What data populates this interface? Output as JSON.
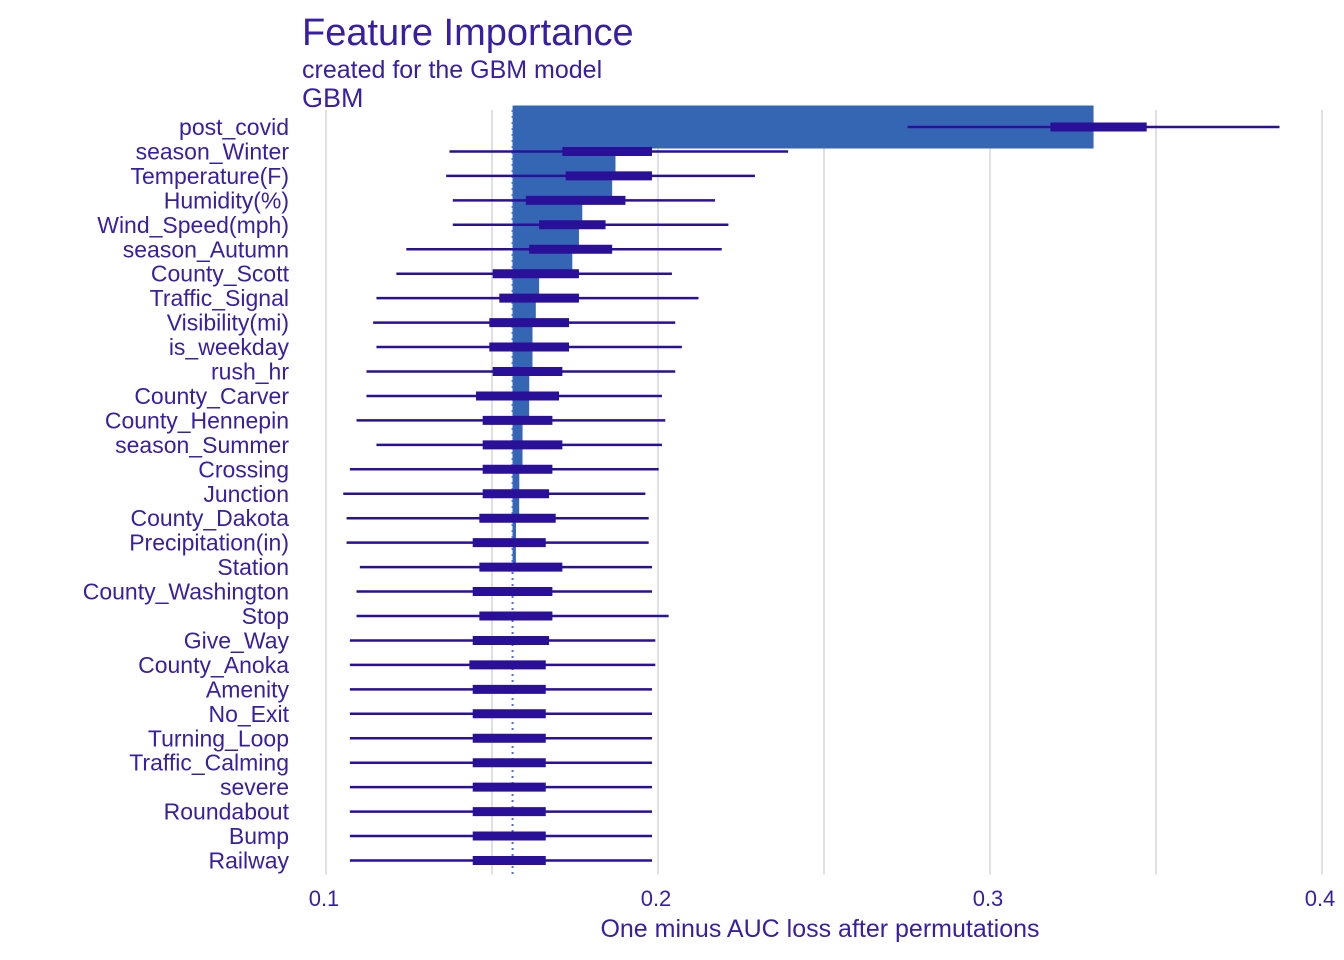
{
  "colors": {
    "bar": "#3566b4",
    "whisker": "#2a0f99",
    "text": "#371ea3",
    "grid": "#e0e0e0",
    "baseline": "#4a6fd6"
  },
  "chart_data": {
    "type": "bar",
    "title": "Feature Importance",
    "subtitle": "created for the GBM model",
    "facet_label": "GBM",
    "xlabel": "One minus AUC loss after permutations",
    "xlim": [
      0.1,
      0.4
    ],
    "xticks": [
      "0.1",
      "0.2",
      "0.3",
      "0.4"
    ],
    "baseline": 0.158,
    "grid": true,
    "categories": [
      "post_covid",
      "season_Winter",
      "Temperature(F)",
      "Humidity(%)",
      "Wind_Speed(mph)",
      "season_Autumn",
      "County_Scott",
      "Traffic_Signal",
      "Visibility(mi)",
      "is_weekday",
      "rush_hr",
      "County_Carver",
      "County_Hennepin",
      "season_Summer",
      "Crossing",
      "Junction",
      "County_Dakota",
      "Precipitation(in)",
      "Station",
      "County_Washington",
      "Stop",
      "Give_Way",
      "County_Anoka",
      "Amenity",
      "No_Exit",
      "Turning_Loop",
      "Traffic_Calming",
      "severe",
      "Roundabout",
      "Bump",
      "Railway"
    ],
    "values": [
      0.333,
      0.189,
      0.188,
      0.179,
      0.178,
      0.176,
      0.166,
      0.165,
      0.164,
      0.164,
      0.163,
      0.163,
      0.161,
      0.161,
      0.16,
      0.16,
      0.159,
      0.159,
      0.158,
      0.158,
      0.158,
      0.158,
      0.158,
      0.158,
      0.158,
      0.158,
      0.158,
      0.158,
      0.158,
      0.158,
      0.158
    ],
    "ranges": [
      {
        "min": 0.277,
        "q1": 0.32,
        "q3": 0.349,
        "max": 0.389
      },
      {
        "min": 0.139,
        "q1": 0.173,
        "q3": 0.2,
        "max": 0.241
      },
      {
        "min": 0.138,
        "q1": 0.174,
        "q3": 0.2,
        "max": 0.231
      },
      {
        "min": 0.14,
        "q1": 0.162,
        "q3": 0.192,
        "max": 0.219
      },
      {
        "min": 0.14,
        "q1": 0.166,
        "q3": 0.186,
        "max": 0.223
      },
      {
        "min": 0.126,
        "q1": 0.163,
        "q3": 0.188,
        "max": 0.221
      },
      {
        "min": 0.123,
        "q1": 0.152,
        "q3": 0.178,
        "max": 0.206
      },
      {
        "min": 0.117,
        "q1": 0.154,
        "q3": 0.178,
        "max": 0.214
      },
      {
        "min": 0.116,
        "q1": 0.151,
        "q3": 0.175,
        "max": 0.207
      },
      {
        "min": 0.117,
        "q1": 0.151,
        "q3": 0.175,
        "max": 0.209
      },
      {
        "min": 0.114,
        "q1": 0.152,
        "q3": 0.173,
        "max": 0.207
      },
      {
        "min": 0.114,
        "q1": 0.147,
        "q3": 0.172,
        "max": 0.203
      },
      {
        "min": 0.111,
        "q1": 0.149,
        "q3": 0.17,
        "max": 0.204
      },
      {
        "min": 0.117,
        "q1": 0.149,
        "q3": 0.173,
        "max": 0.203
      },
      {
        "min": 0.109,
        "q1": 0.149,
        "q3": 0.17,
        "max": 0.202
      },
      {
        "min": 0.107,
        "q1": 0.149,
        "q3": 0.169,
        "max": 0.198
      },
      {
        "min": 0.108,
        "q1": 0.148,
        "q3": 0.171,
        "max": 0.199
      },
      {
        "min": 0.108,
        "q1": 0.146,
        "q3": 0.168,
        "max": 0.199
      },
      {
        "min": 0.112,
        "q1": 0.148,
        "q3": 0.173,
        "max": 0.2
      },
      {
        "min": 0.111,
        "q1": 0.146,
        "q3": 0.17,
        "max": 0.2
      },
      {
        "min": 0.111,
        "q1": 0.148,
        "q3": 0.17,
        "max": 0.205
      },
      {
        "min": 0.109,
        "q1": 0.146,
        "q3": 0.169,
        "max": 0.201
      },
      {
        "min": 0.109,
        "q1": 0.145,
        "q3": 0.168,
        "max": 0.201
      },
      {
        "min": 0.109,
        "q1": 0.146,
        "q3": 0.168,
        "max": 0.2
      },
      {
        "min": 0.109,
        "q1": 0.146,
        "q3": 0.168,
        "max": 0.2
      },
      {
        "min": 0.109,
        "q1": 0.146,
        "q3": 0.168,
        "max": 0.2
      },
      {
        "min": 0.109,
        "q1": 0.146,
        "q3": 0.168,
        "max": 0.2
      },
      {
        "min": 0.109,
        "q1": 0.146,
        "q3": 0.168,
        "max": 0.2
      },
      {
        "min": 0.109,
        "q1": 0.146,
        "q3": 0.168,
        "max": 0.2
      },
      {
        "min": 0.109,
        "q1": 0.146,
        "q3": 0.168,
        "max": 0.2
      },
      {
        "min": 0.109,
        "q1": 0.146,
        "q3": 0.168,
        "max": 0.2
      }
    ]
  }
}
